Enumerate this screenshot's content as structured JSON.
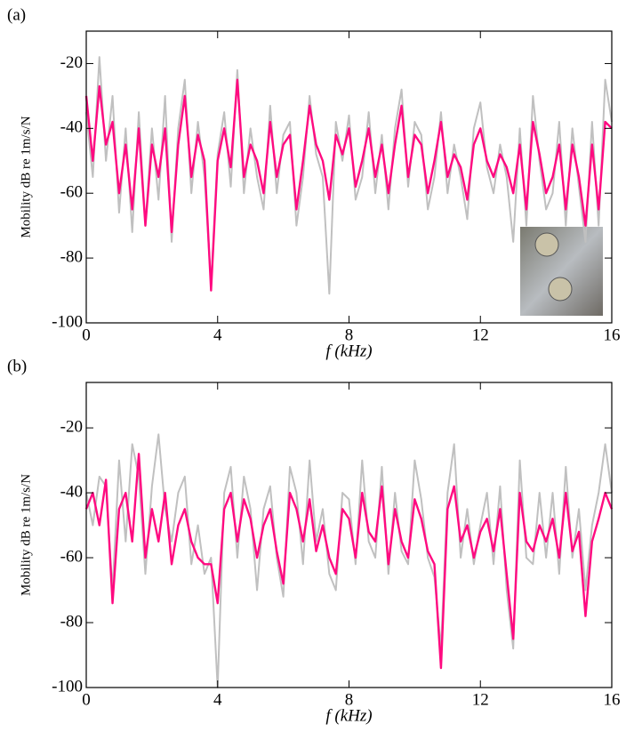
{
  "chart_data": [
    {
      "type": "line",
      "label": "(a)",
      "y_label": "Mobility  dB re 1m/s/N",
      "x_label": "f (kHz)",
      "xlim": [
        0,
        16
      ],
      "xticks": [
        0,
        4,
        8,
        12,
        16
      ],
      "ylim": [
        -100,
        -10
      ],
      "yticks": [
        -100,
        -80,
        -60,
        -40,
        -20
      ],
      "x": [
        0,
        0.2,
        0.4,
        0.6,
        0.8,
        1,
        1.2,
        1.4,
        1.6,
        1.8,
        2,
        2.2,
        2.4,
        2.6,
        2.8,
        3,
        3.2,
        3.4,
        3.6,
        3.8,
        4,
        4.2,
        4.4,
        4.6,
        4.8,
        5,
        5.2,
        5.4,
        5.6,
        5.8,
        6,
        6.2,
        6.4,
        6.6,
        6.8,
        7,
        7.2,
        7.4,
        7.6,
        7.8,
        8,
        8.2,
        8.4,
        8.6,
        8.8,
        9,
        9.2,
        9.4,
        9.6,
        9.8,
        10,
        10.2,
        10.4,
        10.6,
        10.8,
        11,
        11.2,
        11.4,
        11.6,
        11.8,
        12,
        12.2,
        12.4,
        12.6,
        12.8,
        13,
        13.2,
        13.4,
        13.6,
        13.8,
        14,
        14.2,
        14.4,
        14.6,
        14.8,
        15,
        15.2,
        15.4,
        15.6,
        15.8,
        16
      ],
      "series": [
        {
          "color": "#c0c0c0",
          "values": [
            -35,
            -55,
            -18,
            -50,
            -30,
            -66,
            -40,
            -72,
            -35,
            -70,
            -40,
            -62,
            -30,
            -75,
            -40,
            -25,
            -60,
            -38,
            -55,
            -88,
            -48,
            -35,
            -58,
            -22,
            -60,
            -40,
            -55,
            -65,
            -33,
            -60,
            -42,
            -38,
            -70,
            -55,
            -30,
            -48,
            -55,
            -91,
            -38,
            -50,
            -36,
            -62,
            -55,
            -35,
            -60,
            -42,
            -65,
            -40,
            -28,
            -58,
            -38,
            -42,
            -65,
            -55,
            -35,
            -60,
            -45,
            -55,
            -68,
            -40,
            -32,
            -52,
            -60,
            -45,
            -55,
            -75,
            -40,
            -70,
            -30,
            -50,
            -65,
            -60,
            -38,
            -70,
            -40,
            -58,
            -75,
            -38,
            -70,
            -25,
            -38
          ]
        },
        {
          "color": "#ff0a80",
          "values": [
            -30,
            -50,
            -27,
            -45,
            -38,
            -60,
            -45,
            -65,
            -40,
            -70,
            -45,
            -55,
            -40,
            -72,
            -45,
            -30,
            -55,
            -42,
            -50,
            -90,
            -50,
            -40,
            -52,
            -25,
            -55,
            -45,
            -50,
            -60,
            -38,
            -55,
            -45,
            -42,
            -65,
            -50,
            -33,
            -45,
            -50,
            -62,
            -42,
            -48,
            -40,
            -58,
            -50,
            -40,
            -55,
            -45,
            -60,
            -45,
            -33,
            -55,
            -42,
            -45,
            -60,
            -50,
            -38,
            -55,
            -48,
            -52,
            -62,
            -45,
            -40,
            -50,
            -55,
            -48,
            -52,
            -60,
            -45,
            -65,
            -38,
            -48,
            -60,
            -55,
            -45,
            -65,
            -45,
            -55,
            -70,
            -45,
            -65,
            -38,
            -40
          ]
        }
      ]
    },
    {
      "type": "line",
      "label": "(b)",
      "y_label": "Mobility  dB re 1m/s/N",
      "x_label": "f (kHz)",
      "xlim": [
        0,
        16
      ],
      "xticks": [
        0,
        4,
        8,
        12,
        16
      ],
      "ylim": [
        -100,
        -6
      ],
      "yticks": [
        -100,
        -80,
        -60,
        -40,
        -20
      ],
      "x": [
        0,
        0.2,
        0.4,
        0.6,
        0.8,
        1,
        1.2,
        1.4,
        1.6,
        1.8,
        2,
        2.2,
        2.4,
        2.6,
        2.8,
        3,
        3.2,
        3.4,
        3.6,
        3.8,
        4,
        4.2,
        4.4,
        4.6,
        4.8,
        5,
        5.2,
        5.4,
        5.6,
        5.8,
        6,
        6.2,
        6.4,
        6.6,
        6.8,
        7,
        7.2,
        7.4,
        7.6,
        7.8,
        8,
        8.2,
        8.4,
        8.6,
        8.8,
        9,
        9.2,
        9.4,
        9.6,
        9.8,
        10,
        10.2,
        10.4,
        10.6,
        10.8,
        11,
        11.2,
        11.4,
        11.6,
        11.8,
        12,
        12.2,
        12.4,
        12.6,
        12.8,
        13,
        13.2,
        13.4,
        13.6,
        13.8,
        14,
        14.2,
        14.4,
        14.6,
        14.8,
        15,
        15.2,
        15.4,
        15.6,
        15.8,
        16
      ],
      "series": [
        {
          "color": "#c0c0c0",
          "values": [
            -40,
            -50,
            -35,
            -38,
            -70,
            -30,
            -55,
            -25,
            -35,
            -65,
            -38,
            -22,
            -45,
            -55,
            -40,
            -35,
            -62,
            -50,
            -65,
            -60,
            -100,
            -40,
            -32,
            -60,
            -35,
            -45,
            -70,
            -45,
            -38,
            -60,
            -72,
            -32,
            -40,
            -62,
            -30,
            -55,
            -45,
            -65,
            -70,
            -40,
            -42,
            -62,
            -30,
            -55,
            -60,
            -32,
            -65,
            -40,
            -58,
            -62,
            -30,
            -42,
            -60,
            -66,
            -88,
            -40,
            -25,
            -60,
            -45,
            -62,
            -50,
            -40,
            -62,
            -38,
            -70,
            -88,
            -30,
            -60,
            -62,
            -40,
            -60,
            -40,
            -65,
            -32,
            -60,
            -45,
            -70,
            -50,
            -40,
            -25,
            -40
          ]
        },
        {
          "color": "#ff0a80",
          "values": [
            -45,
            -40,
            -50,
            -36,
            -74,
            -45,
            -40,
            -55,
            -28,
            -60,
            -45,
            -55,
            -40,
            -62,
            -50,
            -45,
            -55,
            -60,
            -62,
            -62,
            -74,
            -45,
            -40,
            -55,
            -42,
            -48,
            -60,
            -50,
            -45,
            -58,
            -68,
            -40,
            -45,
            -55,
            -42,
            -58,
            -50,
            -60,
            -65,
            -45,
            -48,
            -60,
            -40,
            -52,
            -55,
            -38,
            -62,
            -45,
            -55,
            -60,
            -42,
            -48,
            -58,
            -62,
            -94,
            -45,
            -38,
            -55,
            -50,
            -60,
            -52,
            -48,
            -58,
            -45,
            -65,
            -85,
            -40,
            -55,
            -58,
            -50,
            -55,
            -48,
            -60,
            -40,
            -58,
            -52,
            -78,
            -55,
            -48,
            -40,
            -45
          ]
        }
      ]
    }
  ]
}
